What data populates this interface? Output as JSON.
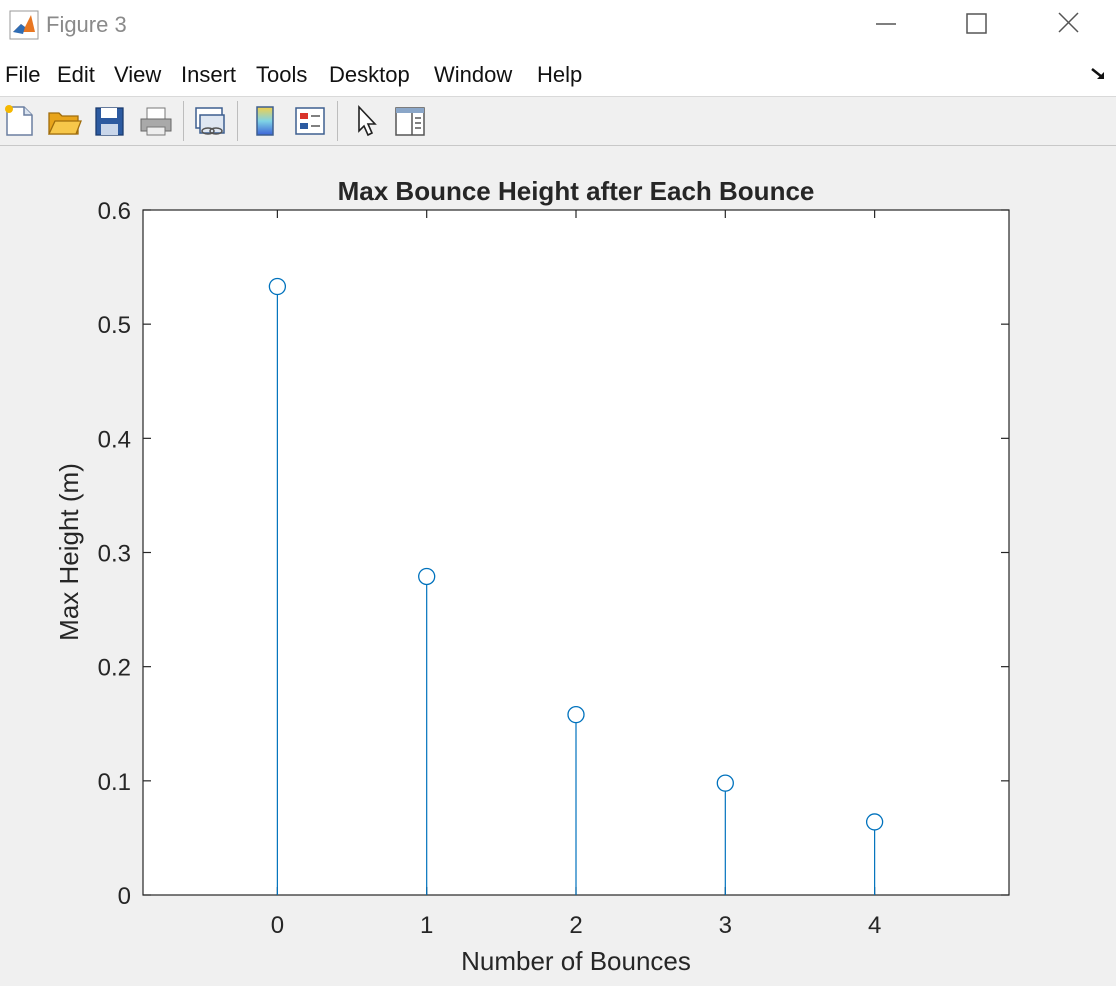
{
  "window": {
    "title": "Figure 3",
    "app_icon": "matlab-icon"
  },
  "menu": [
    "File",
    "Edit",
    "View",
    "Insert",
    "Tools",
    "Desktop",
    "Window",
    "Help"
  ],
  "toolbar": {
    "buttons": [
      "new-figure-icon",
      "open-file-icon",
      "save-icon",
      "print-icon",
      "link-plot-icon",
      "insert-colorbar-icon",
      "insert-legend-icon",
      "edit-plot-icon",
      "property-inspector-icon"
    ]
  },
  "colors": {
    "series": "#0072BD",
    "figure_bg": "#f0f0f0",
    "axes_bg": "#ffffff"
  },
  "chart_data": {
    "type": "stem",
    "title": "Max Bounce Height after Each Bounce",
    "xlabel": "Number of Bounces",
    "ylabel": "Max Height (m)",
    "x": [
      0,
      1,
      2,
      3,
      4
    ],
    "y": [
      0.533,
      0.279,
      0.158,
      0.098,
      0.064
    ],
    "xlim": [
      -0.9,
      4.9
    ],
    "ylim": [
      0,
      0.6
    ],
    "xticks": [
      "0",
      "1",
      "2",
      "3",
      "4"
    ],
    "yticks": [
      "0",
      "0.1",
      "0.2",
      "0.3",
      "0.4",
      "0.5",
      "0.6"
    ],
    "marker": "circle",
    "grid": false
  }
}
